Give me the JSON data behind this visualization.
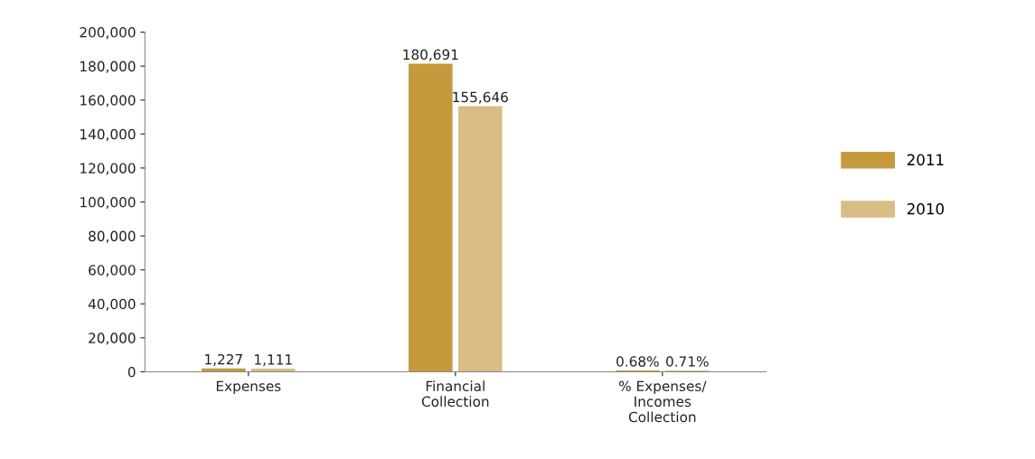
{
  "chart_data": {
    "type": "bar",
    "categories": [
      "Expenses",
      "Financial\nCollection",
      "% Expenses/\nIncomes\nCollection"
    ],
    "series": [
      {
        "name": "2011",
        "color": "#c49a3c",
        "values": [
          1227,
          180691,
          0.68
        ],
        "value_labels": [
          "1,227",
          "180,691",
          "0.68%"
        ]
      },
      {
        "name": "2010",
        "color": "#d8bd84",
        "values": [
          1111,
          155646,
          0.71
        ],
        "value_labels": [
          "1,111",
          "155,646",
          "0.71%"
        ]
      }
    ],
    "ylim": [
      0,
      200000
    ],
    "yticks": [
      0,
      {
        "value": 20000,
        "label": "20,000"
      },
      {
        "value": 40000,
        "label": "40,000"
      },
      {
        "value": 60000,
        "label": "60,000"
      },
      {
        "value": 80000,
        "label": "80,000"
      },
      {
        "value": 100000,
        "label": "100,000"
      },
      {
        "value": 120000,
        "label": "120,000"
      },
      {
        "value": 140000,
        "label": "140,000"
      },
      {
        "value": 160000,
        "label": "160,000"
      },
      {
        "value": 180000,
        "label": "180,000"
      },
      {
        "value": 200000,
        "label": "200,000"
      }
    ],
    "grid": false,
    "legend": "right"
  }
}
